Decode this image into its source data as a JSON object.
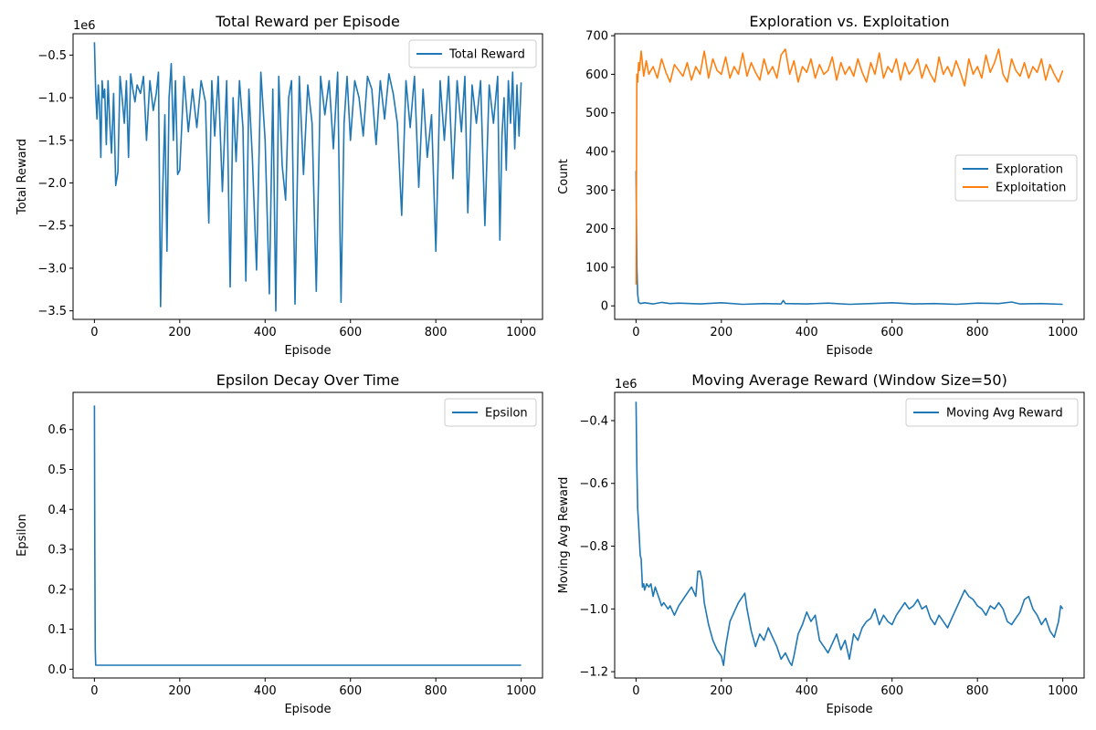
{
  "chart_data": [
    {
      "id": "reward",
      "type": "line",
      "title": "Total Reward per Episode",
      "xlabel": "Episode",
      "ylabel": "Total Reward",
      "offset_text": "1e6",
      "xlim": [
        -50,
        1050
      ],
      "ylim": [
        -3.6,
        -0.25
      ],
      "xticks": [
        0,
        200,
        400,
        600,
        800,
        1000
      ],
      "xtick_labels": [
        "0",
        "200",
        "400",
        "600",
        "800",
        "1000"
      ],
      "yticks": [
        -3.5,
        -3.0,
        -2.5,
        -2.0,
        -1.5,
        -1.0,
        -0.5
      ],
      "ytick_labels": [
        "−3.5",
        "−3.0",
        "−2.5",
        "−2.0",
        "−1.5",
        "−1.0",
        "−0.5"
      ],
      "legend_position": "upper-right",
      "series": [
        {
          "name": "Total Reward",
          "color": "#1f77b4",
          "x": [
            0,
            3,
            6,
            9,
            12,
            15,
            18,
            21,
            24,
            28,
            32,
            36,
            40,
            45,
            50,
            55,
            60,
            65,
            70,
            75,
            80,
            85,
            90,
            95,
            100,
            108,
            115,
            122,
            130,
            138,
            145,
            150,
            155,
            160,
            165,
            170,
            175,
            180,
            185,
            190,
            195,
            200,
            210,
            220,
            230,
            240,
            250,
            260,
            268,
            275,
            282,
            290,
            300,
            310,
            318,
            325,
            332,
            340,
            348,
            355,
            362,
            370,
            380,
            390,
            400,
            410,
            418,
            425,
            432,
            440,
            448,
            455,
            462,
            470,
            480,
            490,
            500,
            510,
            520,
            530,
            540,
            550,
            560,
            570,
            578,
            585,
            592,
            600,
            610,
            620,
            630,
            640,
            650,
            660,
            670,
            680,
            690,
            700,
            710,
            720,
            730,
            740,
            750,
            760,
            770,
            780,
            790,
            800,
            810,
            820,
            830,
            840,
            850,
            860,
            868,
            875,
            885,
            895,
            905,
            915,
            925,
            935,
            945,
            950,
            955,
            960,
            965,
            970,
            975,
            980,
            985,
            990,
            995,
            1000
          ],
          "y": [
            -0.35,
            -0.95,
            -1.25,
            -0.85,
            -1.1,
            -1.7,
            -0.8,
            -1.0,
            -0.9,
            -1.55,
            -0.8,
            -1.3,
            -1.65,
            -0.95,
            -2.03,
            -1.87,
            -0.75,
            -1.0,
            -1.3,
            -0.8,
            -1.7,
            -0.72,
            -0.9,
            -1.05,
            -0.85,
            -0.95,
            -0.75,
            -1.5,
            -0.8,
            -1.15,
            -0.95,
            -0.7,
            -3.45,
            -2.1,
            -1.2,
            -2.8,
            -1.0,
            -0.6,
            -1.5,
            -0.8,
            -1.9,
            -1.85,
            -0.75,
            -1.4,
            -0.9,
            -1.35,
            -0.8,
            -1.05,
            -2.47,
            -0.8,
            -1.45,
            -0.75,
            -2.1,
            -0.8,
            -3.22,
            -1.0,
            -1.75,
            -0.8,
            -1.35,
            -3.15,
            -0.9,
            -1.7,
            -3.02,
            -0.7,
            -1.5,
            -3.3,
            -0.9,
            -3.5,
            -0.75,
            -1.8,
            -2.2,
            -1.0,
            -0.8,
            -3.42,
            -0.75,
            -1.9,
            -0.85,
            -1.3,
            -3.27,
            -0.75,
            -1.2,
            -0.8,
            -1.6,
            -0.7,
            -3.4,
            -1.3,
            -0.75,
            -1.5,
            -0.8,
            -1.0,
            -1.45,
            -0.75,
            -0.9,
            -1.55,
            -0.8,
            -1.25,
            -0.72,
            -0.95,
            -1.3,
            -2.38,
            -0.8,
            -1.35,
            -0.75,
            -2.05,
            -0.9,
            -1.7,
            -1.2,
            -2.8,
            -0.8,
            -1.5,
            -0.75,
            -1.95,
            -0.8,
            -1.4,
            -0.75,
            -2.35,
            -0.85,
            -1.3,
            -0.8,
            -2.5,
            -0.85,
            -1.3,
            -0.75,
            -2.67,
            -1.45,
            -1.0,
            -1.85,
            -0.8,
            -1.3,
            -0.7,
            -1.6,
            -0.85,
            -1.45,
            -0.82
          ]
        }
      ]
    },
    {
      "id": "explore",
      "type": "line",
      "title": "Exploration vs. Exploitation",
      "xlabel": "Episode",
      "ylabel": "Count",
      "xlim": [
        -50,
        1050
      ],
      "ylim": [
        -35,
        705
      ],
      "xticks": [
        0,
        200,
        400,
        600,
        800,
        1000
      ],
      "xtick_labels": [
        "0",
        "200",
        "400",
        "600",
        "800",
        "1000"
      ],
      "yticks": [
        0,
        100,
        200,
        300,
        400,
        500,
        600,
        700
      ],
      "ytick_labels": [
        "0",
        "100",
        "200",
        "300",
        "400",
        "500",
        "600",
        "700"
      ],
      "legend_position": "center-right",
      "series": [
        {
          "name": "Exploration",
          "color": "#1f77b4",
          "x": [
            0,
            2,
            4,
            6,
            10,
            20,
            40,
            60,
            80,
            100,
            150,
            200,
            250,
            300,
            340,
            345,
            350,
            400,
            450,
            500,
            550,
            600,
            650,
            700,
            750,
            800,
            850,
            880,
            900,
            950,
            1000
          ],
          "y": [
            350,
            100,
            30,
            10,
            6,
            8,
            5,
            9,
            6,
            7,
            5,
            8,
            4,
            6,
            5,
            14,
            6,
            5,
            7,
            4,
            6,
            8,
            5,
            6,
            4,
            7,
            6,
            10,
            5,
            6,
            4
          ]
        },
        {
          "name": "Exploitation",
          "color": "#ff7f0e",
          "x": [
            0,
            2,
            4,
            6,
            8,
            12,
            18,
            24,
            30,
            40,
            50,
            60,
            70,
            80,
            90,
            100,
            110,
            120,
            130,
            140,
            150,
            160,
            170,
            180,
            190,
            200,
            210,
            220,
            230,
            240,
            250,
            260,
            270,
            280,
            290,
            300,
            310,
            320,
            330,
            340,
            350,
            360,
            370,
            380,
            390,
            400,
            410,
            420,
            430,
            440,
            450,
            460,
            470,
            480,
            490,
            500,
            510,
            520,
            530,
            540,
            550,
            560,
            570,
            580,
            590,
            600,
            610,
            620,
            630,
            640,
            650,
            660,
            670,
            680,
            690,
            700,
            710,
            720,
            730,
            740,
            750,
            760,
            770,
            780,
            790,
            800,
            810,
            820,
            830,
            840,
            850,
            860,
            870,
            880,
            890,
            900,
            910,
            920,
            930,
            940,
            950,
            960,
            970,
            980,
            990,
            1000
          ],
          "y": [
            55,
            600,
            580,
            630,
            610,
            660,
            595,
            635,
            600,
            620,
            590,
            640,
            605,
            580,
            625,
            610,
            595,
            630,
            585,
            620,
            600,
            660,
            590,
            640,
            610,
            600,
            645,
            590,
            620,
            600,
            655,
            595,
            630,
            605,
            585,
            640,
            600,
            620,
            590,
            650,
            665,
            600,
            635,
            580,
            620,
            605,
            640,
            590,
            625,
            600,
            610,
            645,
            585,
            630,
            600,
            620,
            595,
            640,
            605,
            580,
            630,
            600,
            655,
            590,
            620,
            605,
            640,
            585,
            630,
            600,
            615,
            640,
            590,
            625,
            600,
            580,
            645,
            600,
            620,
            595,
            635,
            605,
            570,
            640,
            600,
            620,
            590,
            650,
            605,
            630,
            665,
            600,
            580,
            640,
            610,
            595,
            630,
            590,
            620,
            605,
            640,
            585,
            625,
            600,
            580,
            610
          ]
        }
      ]
    },
    {
      "id": "epsilon",
      "type": "line",
      "title": "Epsilon Decay Over Time",
      "xlabel": "Episode",
      "ylabel": "Epsilon",
      "xlim": [
        -50,
        1050
      ],
      "ylim": [
        -0.022,
        0.693
      ],
      "xticks": [
        0,
        200,
        400,
        600,
        800,
        1000
      ],
      "xtick_labels": [
        "0",
        "200",
        "400",
        "600",
        "800",
        "1000"
      ],
      "yticks": [
        0.0,
        0.1,
        0.2,
        0.3,
        0.4,
        0.5,
        0.6
      ],
      "ytick_labels": [
        "0.0",
        "0.1",
        "0.2",
        "0.3",
        "0.4",
        "0.5",
        "0.6"
      ],
      "legend_position": "upper-right",
      "series": [
        {
          "name": "Epsilon",
          "color": "#1f77b4",
          "x": [
            0,
            1,
            2,
            3,
            1000
          ],
          "y": [
            0.66,
            0.3,
            0.05,
            0.01,
            0.01
          ]
        }
      ]
    },
    {
      "id": "movavg",
      "type": "line",
      "title": "Moving Average Reward (Window Size=50)",
      "xlabel": "Episode",
      "ylabel": "Moving Avg Reward",
      "offset_text": "1e6",
      "xlim": [
        -50,
        1050
      ],
      "ylim": [
        -1.22,
        -0.31
      ],
      "xticks": [
        0,
        200,
        400,
        600,
        800,
        1000
      ],
      "xtick_labels": [
        "0",
        "200",
        "400",
        "600",
        "800",
        "1000"
      ],
      "yticks": [
        -1.2,
        -1.0,
        -0.8,
        -0.6,
        -0.4
      ],
      "ytick_labels": [
        "−1.2",
        "−1.0",
        "−0.8",
        "−0.6",
        "−0.4"
      ],
      "legend_position": "upper-right",
      "series": [
        {
          "name": "Moving Avg Reward",
          "color": "#1f77b4",
          "x": [
            0,
            2,
            4,
            6,
            8,
            10,
            12,
            15,
            18,
            20,
            25,
            30,
            35,
            40,
            45,
            50,
            55,
            60,
            65,
            70,
            75,
            80,
            90,
            100,
            110,
            120,
            130,
            140,
            145,
            150,
            155,
            160,
            170,
            180,
            190,
            200,
            205,
            210,
            220,
            230,
            240,
            250,
            255,
            260,
            270,
            280,
            290,
            300,
            310,
            320,
            330,
            340,
            350,
            360,
            365,
            370,
            380,
            390,
            395,
            400,
            410,
            420,
            430,
            440,
            450,
            460,
            470,
            480,
            490,
            500,
            510,
            520,
            530,
            540,
            550,
            560,
            570,
            580,
            590,
            600,
            610,
            620,
            630,
            640,
            650,
            660,
            670,
            680,
            690,
            700,
            710,
            720,
            730,
            740,
            750,
            760,
            770,
            780,
            790,
            800,
            810,
            820,
            830,
            840,
            850,
            860,
            870,
            880,
            890,
            900,
            910,
            920,
            930,
            940,
            950,
            960,
            970,
            980,
            990,
            995,
            1000
          ],
          "y": [
            -0.34,
            -0.55,
            -0.68,
            -0.73,
            -0.78,
            -0.83,
            -0.84,
            -0.93,
            -0.92,
            -0.94,
            -0.92,
            -0.93,
            -0.92,
            -0.96,
            -0.93,
            -0.95,
            -0.97,
            -0.99,
            -0.98,
            -0.99,
            -1.0,
            -0.99,
            -1.02,
            -0.99,
            -0.97,
            -0.95,
            -0.93,
            -0.96,
            -0.88,
            -0.88,
            -0.91,
            -0.98,
            -1.05,
            -1.1,
            -1.13,
            -1.15,
            -1.18,
            -1.12,
            -1.04,
            -1.01,
            -0.98,
            -0.96,
            -0.95,
            -1.0,
            -1.07,
            -1.12,
            -1.08,
            -1.1,
            -1.06,
            -1.09,
            -1.12,
            -1.16,
            -1.14,
            -1.17,
            -1.18,
            -1.15,
            -1.08,
            -1.05,
            -1.03,
            -1.01,
            -1.04,
            -1.02,
            -1.1,
            -1.12,
            -1.14,
            -1.11,
            -1.08,
            -1.13,
            -1.1,
            -1.16,
            -1.08,
            -1.1,
            -1.06,
            -1.04,
            -1.03,
            -1.0,
            -1.05,
            -1.02,
            -1.04,
            -1.05,
            -1.02,
            -1.0,
            -0.98,
            -1.0,
            -0.99,
            -0.97,
            -1.0,
            -0.99,
            -1.03,
            -1.05,
            -1.02,
            -1.04,
            -1.06,
            -1.03,
            -1.0,
            -0.97,
            -0.94,
            -0.96,
            -0.97,
            -0.99,
            -1.0,
            -1.02,
            -0.99,
            -1.0,
            -0.98,
            -1.0,
            -1.04,
            -1.05,
            -1.03,
            -1.01,
            -0.97,
            -0.96,
            -1.0,
            -1.02,
            -1.05,
            -1.03,
            -1.07,
            -1.09,
            -1.04,
            -0.99,
            -1.0
          ]
        }
      ]
    }
  ]
}
